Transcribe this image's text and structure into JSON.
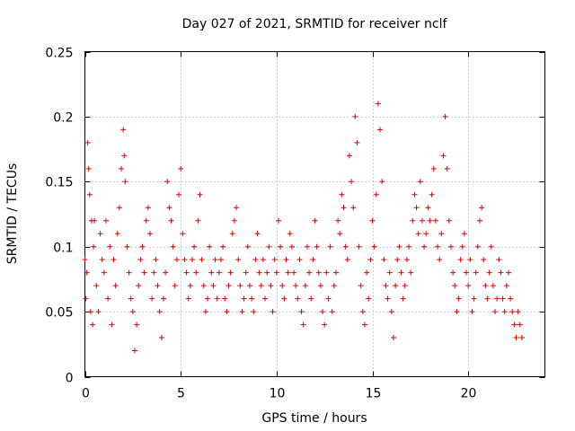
{
  "chart_data": {
    "type": "scatter",
    "title": "Day 027 of 2021, SRMTID for receiver nclf",
    "xlabel": "GPS time / hours",
    "ylabel": "SRMTID / TECUs",
    "xlim": [
      0,
      24
    ],
    "ylim": [
      0,
      0.25
    ],
    "xticks": [
      0,
      5,
      10,
      15,
      20
    ],
    "xtick_labels": [
      "0",
      "5",
      "10",
      "15",
      "20"
    ],
    "yticks": [
      0,
      0.05,
      0.1,
      0.15,
      0.2,
      0.25
    ],
    "ytick_labels": [
      "0",
      "0.05",
      "0.1",
      "0.15",
      "0.2",
      "0.25"
    ],
    "grid": true,
    "marker": "plus",
    "color": "#e00000",
    "series": [
      {
        "points": [
          [
            0.0,
            0.09
          ],
          [
            0.05,
            0.06
          ],
          [
            0.1,
            0.08
          ],
          [
            0.15,
            0.18
          ],
          [
            0.2,
            0.16
          ],
          [
            0.25,
            0.14
          ],
          [
            0.3,
            0.05
          ],
          [
            0.35,
            0.12
          ],
          [
            0.4,
            0.04
          ],
          [
            0.45,
            0.1
          ],
          [
            0.5,
            0.12
          ],
          [
            0.6,
            0.07
          ],
          [
            0.7,
            0.05
          ],
          [
            0.8,
            0.11
          ],
          [
            0.9,
            0.09
          ],
          [
            1.0,
            0.08
          ],
          [
            1.1,
            0.12
          ],
          [
            1.2,
            0.06
          ],
          [
            1.3,
            0.1
          ],
          [
            1.4,
            0.04
          ],
          [
            1.5,
            0.09
          ],
          [
            1.6,
            0.07
          ],
          [
            1.7,
            0.11
          ],
          [
            1.8,
            0.13
          ],
          [
            1.9,
            0.16
          ],
          [
            2.0,
            0.19
          ],
          [
            2.05,
            0.17
          ],
          [
            2.1,
            0.15
          ],
          [
            2.2,
            0.1
          ],
          [
            2.3,
            0.08
          ],
          [
            2.4,
            0.06
          ],
          [
            2.5,
            0.05
          ],
          [
            2.6,
            0.02
          ],
          [
            2.7,
            0.04
          ],
          [
            2.8,
            0.07
          ],
          [
            2.9,
            0.09
          ],
          [
            3.0,
            0.1
          ],
          [
            3.1,
            0.08
          ],
          [
            3.2,
            0.12
          ],
          [
            3.3,
            0.13
          ],
          [
            3.4,
            0.11
          ],
          [
            3.5,
            0.06
          ],
          [
            3.6,
            0.08
          ],
          [
            3.7,
            0.09
          ],
          [
            3.8,
            0.07
          ],
          [
            3.9,
            0.05
          ],
          [
            4.0,
            0.03
          ],
          [
            4.1,
            0.06
          ],
          [
            4.2,
            0.08
          ],
          [
            4.3,
            0.15
          ],
          [
            4.4,
            0.13
          ],
          [
            4.5,
            0.12
          ],
          [
            4.6,
            0.1
          ],
          [
            4.7,
            0.07
          ],
          [
            4.8,
            0.09
          ],
          [
            4.9,
            0.14
          ],
          [
            5.0,
            0.16
          ],
          [
            5.1,
            0.11
          ],
          [
            5.2,
            0.09
          ],
          [
            5.3,
            0.08
          ],
          [
            5.4,
            0.06
          ],
          [
            5.5,
            0.07
          ],
          [
            5.6,
            0.09
          ],
          [
            5.7,
            0.1
          ],
          [
            5.8,
            0.08
          ],
          [
            5.9,
            0.12
          ],
          [
            6.0,
            0.14
          ],
          [
            6.1,
            0.09
          ],
          [
            6.2,
            0.07
          ],
          [
            6.3,
            0.05
          ],
          [
            6.4,
            0.06
          ],
          [
            6.5,
            0.1
          ],
          [
            6.6,
            0.08
          ],
          [
            6.7,
            0.07
          ],
          [
            6.8,
            0.09
          ],
          [
            6.9,
            0.06
          ],
          [
            7.0,
            0.08
          ],
          [
            7.1,
            0.09
          ],
          [
            7.2,
            0.1
          ],
          [
            7.3,
            0.06
          ],
          [
            7.4,
            0.05
          ],
          [
            7.5,
            0.07
          ],
          [
            7.6,
            0.08
          ],
          [
            7.7,
            0.11
          ],
          [
            7.8,
            0.12
          ],
          [
            7.9,
            0.13
          ],
          [
            8.0,
            0.09
          ],
          [
            8.1,
            0.07
          ],
          [
            8.2,
            0.05
          ],
          [
            8.3,
            0.06
          ],
          [
            8.4,
            0.08
          ],
          [
            8.5,
            0.1
          ],
          [
            8.6,
            0.07
          ],
          [
            8.7,
            0.06
          ],
          [
            8.8,
            0.05
          ],
          [
            8.9,
            0.09
          ],
          [
            9.0,
            0.11
          ],
          [
            9.1,
            0.08
          ],
          [
            9.2,
            0.07
          ],
          [
            9.3,
            0.09
          ],
          [
            9.4,
            0.06
          ],
          [
            9.5,
            0.08
          ],
          [
            9.6,
            0.1
          ],
          [
            9.7,
            0.07
          ],
          [
            9.8,
            0.05
          ],
          [
            9.9,
            0.09
          ],
          [
            10.0,
            0.08
          ],
          [
            10.1,
            0.12
          ],
          [
            10.2,
            0.1
          ],
          [
            10.3,
            0.07
          ],
          [
            10.4,
            0.06
          ],
          [
            10.5,
            0.09
          ],
          [
            10.6,
            0.08
          ],
          [
            10.7,
            0.11
          ],
          [
            10.8,
            0.1
          ],
          [
            10.9,
            0.08
          ],
          [
            11.0,
            0.07
          ],
          [
            11.1,
            0.06
          ],
          [
            11.2,
            0.09
          ],
          [
            11.3,
            0.05
          ],
          [
            11.4,
            0.04
          ],
          [
            11.5,
            0.07
          ],
          [
            11.6,
            0.1
          ],
          [
            11.7,
            0.08
          ],
          [
            11.8,
            0.06
          ],
          [
            11.9,
            0.09
          ],
          [
            12.0,
            0.12
          ],
          [
            12.1,
            0.1
          ],
          [
            12.2,
            0.08
          ],
          [
            12.3,
            0.07
          ],
          [
            12.4,
            0.05
          ],
          [
            12.5,
            0.04
          ],
          [
            12.6,
            0.08
          ],
          [
            12.7,
            0.06
          ],
          [
            12.8,
            0.1
          ],
          [
            12.9,
            0.05
          ],
          [
            13.0,
            0.07
          ],
          [
            13.1,
            0.08
          ],
          [
            13.2,
            0.12
          ],
          [
            13.3,
            0.11
          ],
          [
            13.4,
            0.14
          ],
          [
            13.5,
            0.13
          ],
          [
            13.6,
            0.1
          ],
          [
            13.7,
            0.09
          ],
          [
            13.8,
            0.17
          ],
          [
            13.9,
            0.15
          ],
          [
            14.0,
            0.13
          ],
          [
            14.1,
            0.2
          ],
          [
            14.2,
            0.18
          ],
          [
            14.3,
            0.1
          ],
          [
            14.4,
            0.07
          ],
          [
            14.5,
            0.05
          ],
          [
            14.6,
            0.04
          ],
          [
            14.7,
            0.08
          ],
          [
            14.8,
            0.06
          ],
          [
            14.9,
            0.09
          ],
          [
            15.0,
            0.12
          ],
          [
            15.1,
            0.1
          ],
          [
            15.2,
            0.14
          ],
          [
            15.3,
            0.21
          ],
          [
            15.4,
            0.19
          ],
          [
            15.5,
            0.15
          ],
          [
            15.6,
            0.09
          ],
          [
            15.7,
            0.07
          ],
          [
            15.8,
            0.06
          ],
          [
            15.9,
            0.08
          ],
          [
            16.0,
            0.05
          ],
          [
            16.1,
            0.03
          ],
          [
            16.2,
            0.07
          ],
          [
            16.3,
            0.09
          ],
          [
            16.4,
            0.1
          ],
          [
            16.5,
            0.08
          ],
          [
            16.6,
            0.06
          ],
          [
            16.7,
            0.07
          ],
          [
            16.8,
            0.09
          ],
          [
            16.9,
            0.1
          ],
          [
            17.0,
            0.08
          ],
          [
            17.1,
            0.12
          ],
          [
            17.2,
            0.14
          ],
          [
            17.3,
            0.13
          ],
          [
            17.4,
            0.11
          ],
          [
            17.5,
            0.15
          ],
          [
            17.6,
            0.12
          ],
          [
            17.7,
            0.1
          ],
          [
            17.8,
            0.11
          ],
          [
            17.9,
            0.13
          ],
          [
            18.0,
            0.12
          ],
          [
            18.1,
            0.14
          ],
          [
            18.2,
            0.16
          ],
          [
            18.3,
            0.12
          ],
          [
            18.4,
            0.1
          ],
          [
            18.5,
            0.09
          ],
          [
            18.6,
            0.11
          ],
          [
            18.7,
            0.17
          ],
          [
            18.8,
            0.2
          ],
          [
            18.9,
            0.16
          ],
          [
            19.0,
            0.12
          ],
          [
            19.1,
            0.1
          ],
          [
            19.2,
            0.08
          ],
          [
            19.3,
            0.07
          ],
          [
            19.4,
            0.05
          ],
          [
            19.5,
            0.06
          ],
          [
            19.6,
            0.09
          ],
          [
            19.7,
            0.1
          ],
          [
            19.8,
            0.11
          ],
          [
            19.9,
            0.08
          ],
          [
            20.0,
            0.07
          ],
          [
            20.1,
            0.09
          ],
          [
            20.2,
            0.05
          ],
          [
            20.3,
            0.06
          ],
          [
            20.4,
            0.08
          ],
          [
            20.5,
            0.1
          ],
          [
            20.6,
            0.12
          ],
          [
            20.7,
            0.13
          ],
          [
            20.8,
            0.09
          ],
          [
            20.9,
            0.07
          ],
          [
            21.0,
            0.06
          ],
          [
            21.1,
            0.08
          ],
          [
            21.2,
            0.1
          ],
          [
            21.3,
            0.07
          ],
          [
            21.4,
            0.05
          ],
          [
            21.5,
            0.06
          ],
          [
            21.6,
            0.09
          ],
          [
            21.7,
            0.08
          ],
          [
            21.8,
            0.06
          ],
          [
            21.9,
            0.05
          ],
          [
            22.0,
            0.07
          ],
          [
            22.1,
            0.08
          ],
          [
            22.2,
            0.06
          ],
          [
            22.3,
            0.05
          ],
          [
            22.4,
            0.04
          ],
          [
            22.5,
            0.03
          ],
          [
            22.6,
            0.05
          ],
          [
            22.7,
            0.04
          ],
          [
            22.8,
            0.03
          ]
        ]
      }
    ]
  }
}
